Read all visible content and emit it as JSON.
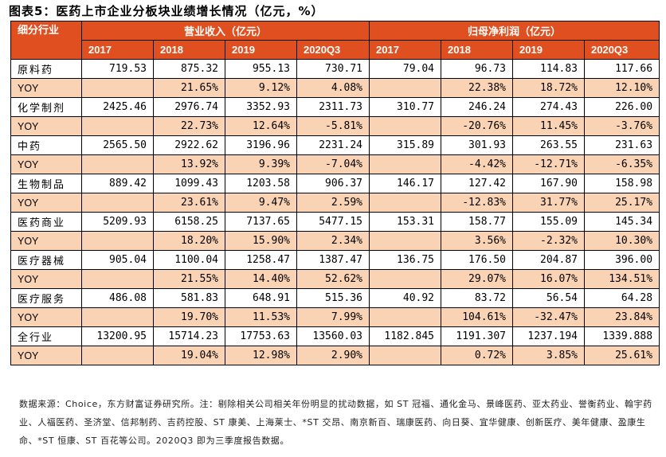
{
  "title": "图表5：医药上市企业分板块业绩增长情况（亿元，%）",
  "colors": {
    "header_bg": "#DF4F1F",
    "yoy_bg": "#FAD3B5",
    "border": "#000000"
  },
  "table": {
    "corner_header": "细分行业",
    "groups": [
      {
        "label": "营业收入（亿元）",
        "years": [
          "2017",
          "2018",
          "2019",
          "2020Q3"
        ]
      },
      {
        "label": "归母净利润（亿元）",
        "years": [
          "2017",
          "2018",
          "2019",
          "2020Q3"
        ]
      }
    ],
    "rows": [
      {
        "type": "value",
        "label": "原料药",
        "cells": [
          "719.53",
          "875.32",
          "955.13",
          "730.71",
          "79.04",
          "96.73",
          "114.83",
          "117.66"
        ]
      },
      {
        "type": "yoy",
        "label": "YOY",
        "cells": [
          "",
          "21.65%",
          "9.12%",
          "4.08%",
          "",
          "22.38%",
          "18.72%",
          "12.10%"
        ]
      },
      {
        "type": "value",
        "label": "化学制剂",
        "cells": [
          "2425.46",
          "2976.74",
          "3352.93",
          "2311.73",
          "310.77",
          "246.24",
          "274.43",
          "226.00"
        ]
      },
      {
        "type": "yoy",
        "label": "YOY",
        "cells": [
          "",
          "22.73%",
          "12.64%",
          "-5.81%",
          "",
          "-20.76%",
          "11.45%",
          "-3.76%"
        ]
      },
      {
        "type": "value",
        "label": "中药",
        "cells": [
          "2565.50",
          "2922.62",
          "3196.96",
          "2231.24",
          "315.89",
          "301.93",
          "263.55",
          "231.63"
        ]
      },
      {
        "type": "yoy",
        "label": "YOY",
        "cells": [
          "",
          "13.92%",
          "9.39%",
          "-7.04%",
          "",
          "-4.42%",
          "-12.71%",
          "-6.35%"
        ]
      },
      {
        "type": "value",
        "label": "生物制品",
        "cells": [
          "889.42",
          "1099.43",
          "1203.58",
          "906.37",
          "146.17",
          "127.42",
          "167.90",
          "158.98"
        ]
      },
      {
        "type": "yoy",
        "label": "YOY",
        "cells": [
          "",
          "23.61%",
          "9.47%",
          "2.59%",
          "",
          "-12.83%",
          "31.77%",
          "25.17%"
        ]
      },
      {
        "type": "value",
        "label": "医药商业",
        "cells": [
          "5209.93",
          "6158.25",
          "7137.65",
          "5477.15",
          "153.31",
          "158.77",
          "155.09",
          "145.34"
        ]
      },
      {
        "type": "yoy",
        "label": "YOY",
        "cells": [
          "",
          "18.20%",
          "15.90%",
          "2.34%",
          "",
          "3.56%",
          "-2.32%",
          "10.30%"
        ]
      },
      {
        "type": "value",
        "label": "医疗器械",
        "cells": [
          "905.04",
          "1100.04",
          "1258.47",
          "1387.47",
          "136.75",
          "176.50",
          "204.87",
          "396.00"
        ]
      },
      {
        "type": "yoy",
        "label": "YOY",
        "cells": [
          "",
          "21.55%",
          "14.40%",
          "52.62%",
          "",
          "29.07%",
          "16.07%",
          "134.51%"
        ]
      },
      {
        "type": "value",
        "label": "医疗服务",
        "cells": [
          "486.08",
          "581.83",
          "648.91",
          "515.36",
          "40.92",
          "83.72",
          "56.54",
          "64.28"
        ]
      },
      {
        "type": "yoy",
        "label": "YOY",
        "cells": [
          "",
          "19.70%",
          "11.53%",
          "7.99%",
          "",
          "104.61%",
          "-32.47%",
          "23.84%"
        ]
      },
      {
        "type": "value",
        "label": "全行业",
        "cells": [
          "13200.95",
          "15714.23",
          "17753.63",
          "13560.03",
          "1182.845",
          "1191.307",
          "1237.194",
          "1339.888"
        ]
      },
      {
        "type": "yoy",
        "label": "YOY",
        "cells": [
          "",
          "19.04%",
          "12.98%",
          "2.90%",
          "",
          "0.72%",
          "3.85%",
          "25.61%"
        ]
      }
    ]
  },
  "note": "数据来源：Choice，东方财富证券研究所。注：剔除相关公司相关年份明显的扰动数据，如 ST 冠福、通化金马、景峰医药、亚太药业、誉衡药业、翰宇药业、人福医药、圣济堂、信邦制药、吉药控股、ST 康美、上海莱士、*ST 交昂、南京新百、瑞康医药、向日葵、宜华健康、创新医疗、美年健康、盈康生命、*ST 恒康、ST 百花等公司。2020Q3 即为三季度报告数据。"
}
